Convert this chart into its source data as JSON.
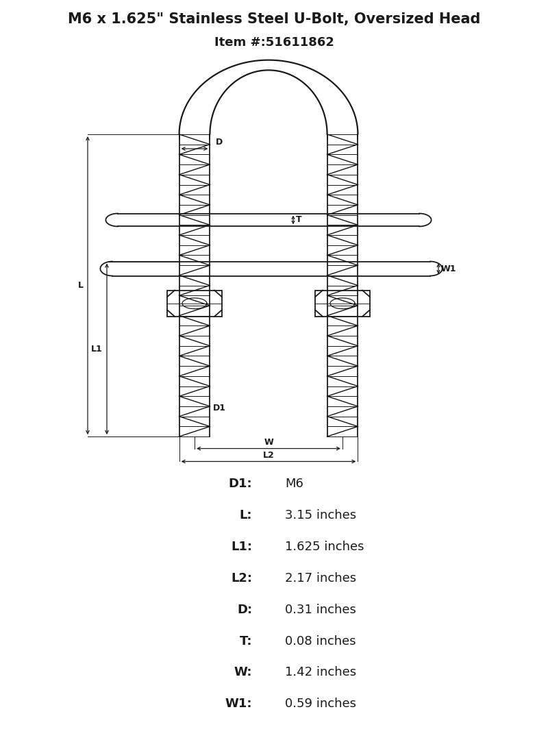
{
  "title_line1": "M6 x 1.625\" Stainless Steel U-Bolt, Oversized Head",
  "title_line2": "Item #:51611862",
  "bg_color": "#ffffff",
  "line_color": "#1a1a1a",
  "specs": [
    [
      "D1:",
      "M6"
    ],
    [
      "L:",
      "3.15 inches"
    ],
    [
      "L1:",
      "1.625 inches"
    ],
    [
      "L2:",
      "2.17 inches"
    ],
    [
      "D:",
      "0.31 inches"
    ],
    [
      "T:",
      "0.08 inches"
    ],
    [
      "W:",
      "1.42 inches"
    ],
    [
      "W1:",
      "0.59 inches"
    ]
  ],
  "lw": 1.3
}
